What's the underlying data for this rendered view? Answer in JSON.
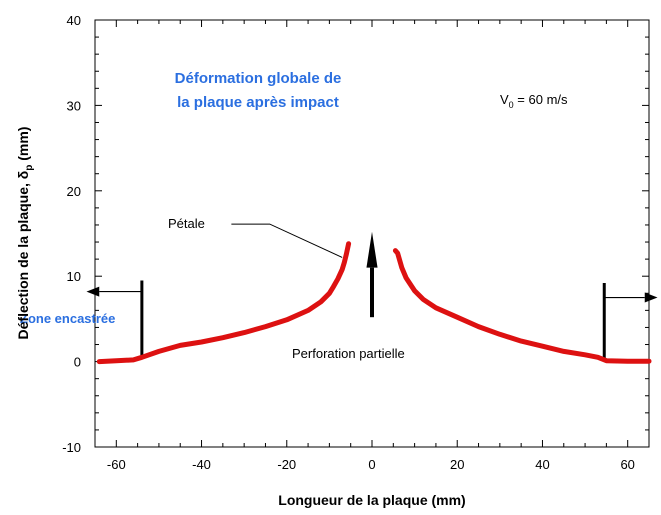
{
  "chart_data": {
    "type": "line",
    "xlabel": "Longueur de la plaque (mm)",
    "ylabel": "Déflection de la plaque, δ",
    "ylabel_sub": "p",
    "ylabel_unit": " (mm)",
    "xlim": [
      -65,
      65
    ],
    "ylim": [
      -10,
      40
    ],
    "xticks": [
      -60,
      -40,
      -20,
      0,
      20,
      40,
      60
    ],
    "yticks": [
      -10,
      0,
      10,
      20,
      30,
      40
    ],
    "grid": false,
    "line_color": "#dd1111",
    "series": [
      {
        "segment": "left",
        "x": [
          -64,
          -60,
          -56,
          -54,
          -50,
          -45,
          -40,
          -35,
          -30,
          -25,
          -20,
          -15,
          -12,
          -10,
          -9,
          -8,
          -7,
          -6.5,
          -6,
          -5.5
        ],
        "y": [
          0,
          0.1,
          0.2,
          0.5,
          1.2,
          1.9,
          2.3,
          2.8,
          3.4,
          4.1,
          4.9,
          6.0,
          7.0,
          8.0,
          8.8,
          9.7,
          10.8,
          11.6,
          12.6,
          13.8
        ]
      },
      {
        "segment": "right",
        "x": [
          5.5,
          6,
          7,
          8,
          10,
          12,
          15,
          20,
          25,
          30,
          35,
          40,
          45,
          50,
          53,
          55,
          60,
          65
        ],
        "y": [
          13.0,
          12.7,
          11.0,
          9.8,
          8.3,
          7.3,
          6.3,
          5.2,
          4.1,
          3.2,
          2.4,
          1.8,
          1.2,
          0.8,
          0.5,
          0.1,
          0.05,
          0.05
        ]
      }
    ]
  },
  "annotations": {
    "title_line1": "Déformation globale de",
    "title_line2": "la plaque après impact",
    "velocity_main": "V",
    "velocity_sub": "0",
    "velocity_value": " = 60 m/s",
    "petale": "Pétale",
    "perforation": "Perforation partielle",
    "zone": "Zone encastrée"
  }
}
